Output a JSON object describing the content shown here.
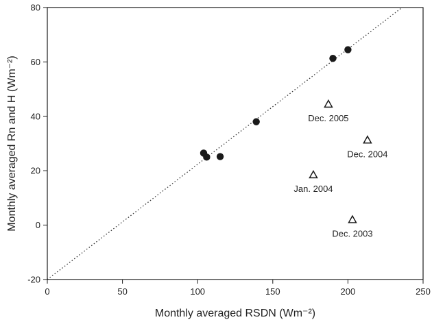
{
  "chart_data": {
    "type": "scatter",
    "title": "",
    "xlabel": "Monthly averaged RSDN (Wm⁻²)",
    "ylabel": "Monthly averaged Rn and H (Wm⁻²)",
    "xlim": [
      0,
      250
    ],
    "ylim": [
      -20,
      80
    ],
    "xticks": [
      0,
      50,
      100,
      150,
      200,
      250
    ],
    "yticks": [
      -20,
      0,
      20,
      40,
      60,
      80
    ],
    "grid": false,
    "legend": "none",
    "series": [
      {
        "marker": "filled-circle",
        "color": "#1a1a1a",
        "points": [
          {
            "x": 104,
            "y": 26.5
          },
          {
            "x": 106,
            "y": 25
          },
          {
            "x": 115,
            "y": 25.2
          },
          {
            "x": 139,
            "y": 38
          },
          {
            "x": 190,
            "y": 61.3
          },
          {
            "x": 200,
            "y": 64.5
          }
        ]
      },
      {
        "marker": "open-triangle",
        "color": "#1a1a1a",
        "points": [
          {
            "x": 187,
            "y": 44.5,
            "label": "Dec. 2005"
          },
          {
            "x": 213,
            "y": 31.3,
            "label": "Dec. 2004"
          },
          {
            "x": 177,
            "y": 18.5,
            "label": "Jan. 2004"
          },
          {
            "x": 203,
            "y": 2,
            "label": "Dec. 2003"
          }
        ]
      }
    ],
    "reference_line": {
      "style": "dotted",
      "points": [
        {
          "x": 0,
          "y": -20
        },
        {
          "x": 236,
          "y": 80
        }
      ]
    }
  }
}
